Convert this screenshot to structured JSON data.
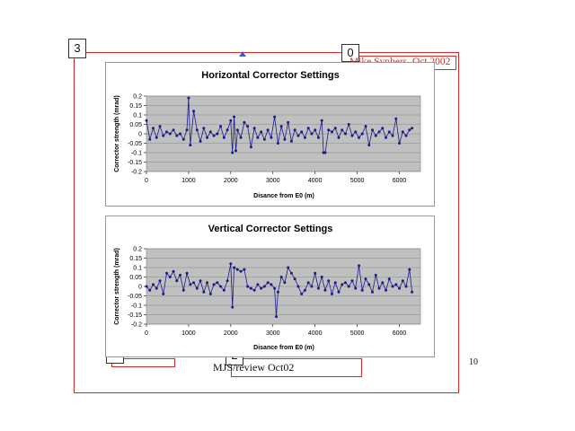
{
  "slide": {
    "author_note": "Mike Syphers, Oct 2002",
    "footer_text": "MJS/review Oct02",
    "page_number": "10"
  },
  "annotations": [
    {
      "label": "0"
    },
    {
      "label": "1"
    },
    {
      "label": "2"
    },
    {
      "label": "3"
    }
  ],
  "colors": {
    "series": "#1a1a8a",
    "plot_bg": "#c0c0c0",
    "annotation": "#d42a2a"
  },
  "chart_data": [
    {
      "type": "line",
      "title": "Horizontal Corrector Settings",
      "xlabel": "Disance from E0 (m)",
      "ylabel": "Corrector strength (mrad)",
      "xlim": [
        0,
        6500
      ],
      "ylim": [
        -0.2,
        0.2
      ],
      "xticks": [
        0,
        1000,
        2000,
        3000,
        4000,
        5000,
        6000
      ],
      "yticks": [
        0.2,
        0.15,
        0.1,
        0.05,
        0,
        -0.05,
        -0.1,
        -0.15,
        -0.2
      ],
      "ytick_labels": [
        "0.2",
        "0.15",
        "0.1",
        "0.05",
        "0",
        "-0.05",
        "-0.1",
        "-0.15",
        "-0.2"
      ],
      "grid": true,
      "legend": "none",
      "series": [
        {
          "x": [
            0,
            80,
            160,
            240,
            320,
            400,
            480,
            560,
            640,
            720,
            800,
            880,
            960,
            1000,
            1040,
            1120,
            1200,
            1280,
            1360,
            1440,
            1520,
            1600,
            1680,
            1760,
            1840,
            1920,
            2000,
            2040,
            2080,
            2120,
            2160,
            2240,
            2320,
            2400,
            2480,
            2560,
            2640,
            2720,
            2800,
            2880,
            2960,
            3040,
            3120,
            3200,
            3280,
            3360,
            3440,
            3520,
            3600,
            3680,
            3760,
            3840,
            3920,
            4000,
            4080,
            4160,
            4200,
            4240,
            4320,
            4400,
            4480,
            4560,
            4640,
            4720,
            4800,
            4880,
            4960,
            5040,
            5120,
            5200,
            5280,
            5360,
            5440,
            5520,
            5600,
            5680,
            5760,
            5840,
            5920,
            6000,
            6080,
            6160,
            6240,
            6300
          ],
          "values": [
            0.07,
            -0.03,
            0.03,
            -0.02,
            0.04,
            -0.01,
            0.01,
            0.0,
            0.02,
            -0.01,
            0.0,
            -0.03,
            0.02,
            0.19,
            -0.06,
            0.12,
            0.02,
            -0.04,
            0.03,
            -0.02,
            0.01,
            -0.01,
            0.0,
            0.04,
            -0.02,
            0.02,
            0.07,
            -0.1,
            0.09,
            -0.09,
            0.02,
            -0.02,
            0.06,
            0.04,
            -0.07,
            0.03,
            -0.02,
            0.01,
            -0.03,
            0.02,
            -0.02,
            0.09,
            -0.05,
            0.04,
            -0.03,
            0.06,
            -0.04,
            0.02,
            -0.01,
            0.01,
            -0.02,
            0.03,
            0.0,
            0.02,
            -0.02,
            0.07,
            -0.1,
            -0.1,
            0.02,
            0.01,
            0.03,
            -0.02,
            0.02,
            0.0,
            0.05,
            -0.01,
            0.01,
            -0.02,
            0.0,
            0.04,
            -0.06,
            0.02,
            -0.01,
            0.01,
            0.03,
            -0.02,
            0.01,
            -0.01,
            0.08,
            -0.05,
            0.01,
            -0.01,
            0.02,
            0.03
          ]
        }
      ]
    },
    {
      "type": "line",
      "title": "Vertical Corrector Settings",
      "xlabel": "Disance from E0 (m)",
      "ylabel": "Corrector strength (mrad)",
      "xlim": [
        0,
        6500
      ],
      "ylim": [
        -0.2,
        0.2
      ],
      "xticks": [
        0,
        1000,
        2000,
        3000,
        4000,
        5000,
        6000
      ],
      "yticks": [
        0.2,
        0.15,
        0.1,
        0.05,
        0,
        -0.05,
        -0.1,
        -0.15,
        -0.2
      ],
      "ytick_labels": [
        "0.2",
        "0.15",
        "0.1",
        "0.05",
        "0",
        "-0.05",
        "-0.1",
        "-0.15",
        "-0.2"
      ],
      "grid": true,
      "legend": "none",
      "series": [
        {
          "x": [
            0,
            80,
            160,
            240,
            320,
            400,
            480,
            560,
            640,
            720,
            800,
            880,
            960,
            1040,
            1120,
            1200,
            1280,
            1360,
            1440,
            1520,
            1600,
            1680,
            1760,
            1840,
            1920,
            2000,
            2040,
            2080,
            2160,
            2240,
            2320,
            2400,
            2480,
            2560,
            2640,
            2720,
            2800,
            2880,
            2960,
            3040,
            3080,
            3120,
            3200,
            3280,
            3360,
            3440,
            3520,
            3600,
            3680,
            3760,
            3840,
            3920,
            4000,
            4080,
            4160,
            4240,
            4320,
            4400,
            4480,
            4560,
            4640,
            4720,
            4800,
            4880,
            4960,
            5040,
            5120,
            5200,
            5280,
            5360,
            5440,
            5520,
            5600,
            5680,
            5760,
            5840,
            5920,
            6000,
            6080,
            6160,
            6240,
            6300
          ],
          "values": [
            0.0,
            -0.02,
            0.01,
            -0.01,
            0.03,
            -0.04,
            0.07,
            0.05,
            0.08,
            0.03,
            0.06,
            -0.02,
            0.07,
            0.01,
            0.02,
            -0.01,
            0.03,
            -0.03,
            0.02,
            -0.04,
            0.01,
            0.02,
            0.0,
            -0.02,
            0.03,
            0.12,
            -0.11,
            0.1,
            0.09,
            0.08,
            0.09,
            0.0,
            -0.01,
            -0.02,
            0.01,
            -0.01,
            0.0,
            0.02,
            0.01,
            -0.01,
            -0.16,
            -0.03,
            0.05,
            0.02,
            0.1,
            0.07,
            0.04,
            0.0,
            -0.04,
            -0.02,
            0.02,
            0.0,
            0.07,
            -0.01,
            0.05,
            -0.02,
            0.03,
            -0.04,
            0.02,
            -0.03,
            0.01,
            0.02,
            0.0,
            0.03,
            -0.01,
            0.11,
            -0.02,
            0.04,
            0.01,
            -0.03,
            0.06,
            -0.01,
            0.02,
            -0.02,
            0.04,
            0.0,
            0.01,
            -0.01,
            0.03,
            0.0,
            0.09,
            -0.03
          ]
        }
      ]
    }
  ]
}
